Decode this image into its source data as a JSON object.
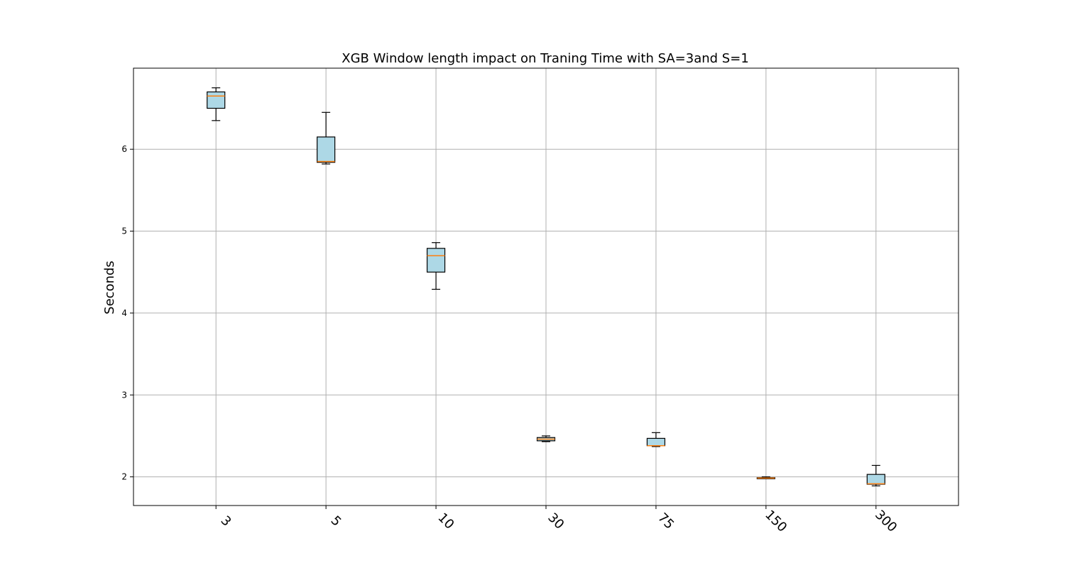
{
  "chart_data": {
    "type": "box",
    "title": "XGB Window length impact on Traning Time with SA=3and S=1",
    "ylabel": "Seconds",
    "xlabel": "",
    "categories": [
      "3",
      "5",
      "10",
      "30",
      "75",
      "150",
      "300"
    ],
    "boxes": [
      {
        "whislo": 6.35,
        "q1": 6.5,
        "med": 6.65,
        "q3": 6.7,
        "whishi": 6.75
      },
      {
        "whislo": 5.82,
        "q1": 5.84,
        "med": 5.85,
        "q3": 6.15,
        "whishi": 6.45
      },
      {
        "whislo": 4.29,
        "q1": 4.5,
        "med": 4.7,
        "q3": 4.79,
        "whishi": 4.86
      },
      {
        "whislo": 2.43,
        "q1": 2.44,
        "med": 2.46,
        "q3": 2.48,
        "whishi": 2.5
      },
      {
        "whislo": 2.37,
        "q1": 2.38,
        "med": 2.38,
        "q3": 2.47,
        "whishi": 2.54
      },
      {
        "whislo": 1.98,
        "q1": 1.98,
        "med": 1.985,
        "q3": 1.99,
        "whishi": 2.0
      },
      {
        "whislo": 1.89,
        "q1": 1.91,
        "med": 1.915,
        "q3": 2.03,
        "whishi": 2.14
      }
    ],
    "yticks": [
      2,
      3,
      4,
      5,
      6
    ],
    "ylim": [
      1.65,
      6.99
    ],
    "grid": true,
    "box_color": "#add8e6",
    "median_color": "#ff7f0e",
    "xtick_rotation": -45
  }
}
